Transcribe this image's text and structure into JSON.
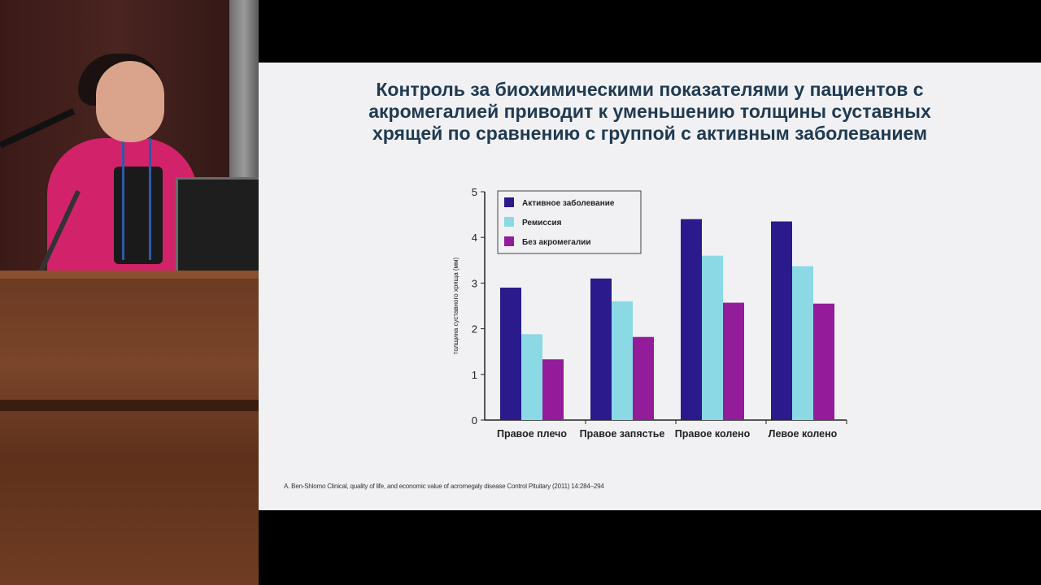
{
  "slide": {
    "title_lines": [
      "Контроль за биохимическими показателями у пациентов с",
      "акромегалией приводит к уменьшению толщины суставных",
      "хрящей по сравнению с группой с активным заболеванием"
    ],
    "citation": "A. Ben-Shlomo Clinical, quality of life, and economic value of acromegaly disease Control Pituitary (2011) 14:284–294"
  },
  "chart_data": {
    "type": "bar",
    "title": "",
    "xlabel": "",
    "ylabel": "толщина суставного хряща (мм)",
    "ylim": [
      0,
      5
    ],
    "yticks": [
      "0",
      "1",
      "2",
      "3",
      "4",
      "5"
    ],
    "grid": false,
    "legend_position": "top-left",
    "categories": [
      "Правое плечо",
      "Правое запястье",
      "Правое колено",
      "Левое колено"
    ],
    "series": [
      {
        "name": "Активное заболевание",
        "color": "#2a1a8c",
        "values": [
          2.9,
          3.1,
          4.4,
          4.35
        ]
      },
      {
        "name": "Ремиссия",
        "color": "#8ad9e4",
        "values": [
          1.88,
          2.6,
          3.6,
          3.37
        ]
      },
      {
        "name": "Без акромегалии",
        "color": "#921c9a",
        "values": [
          1.33,
          1.82,
          2.57,
          2.55
        ]
      }
    ]
  }
}
